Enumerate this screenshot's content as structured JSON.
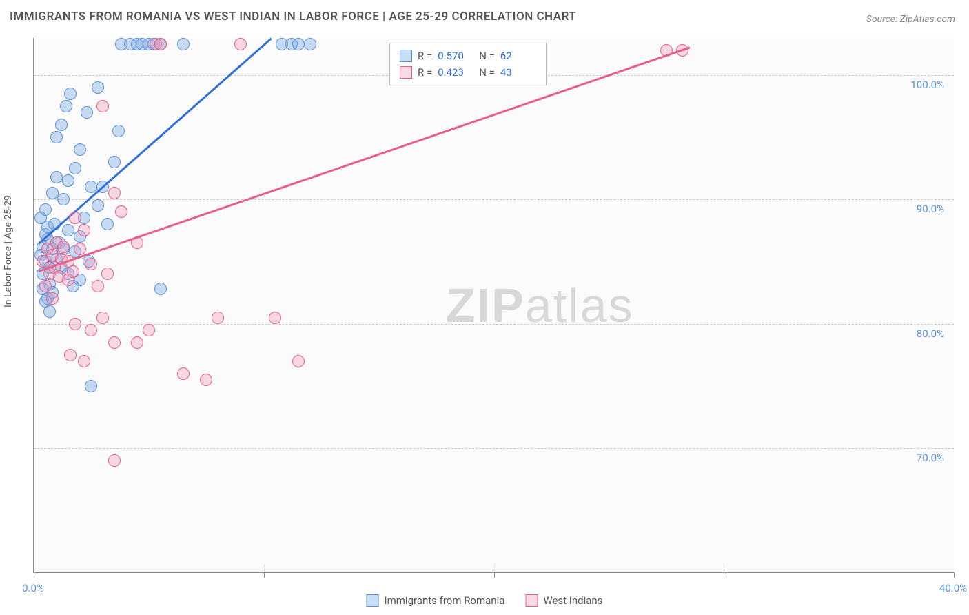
{
  "title": "IMMIGRANTS FROM ROMANIA VS WEST INDIAN IN LABOR FORCE | AGE 25-29 CORRELATION CHART",
  "source": "Source: ZipAtlas.com",
  "ylabel": "In Labor Force | Age 25-29",
  "watermark_prefix": "ZIP",
  "watermark_suffix": "atlas",
  "chart": {
    "type": "scatter",
    "xlim": [
      0,
      40
    ],
    "ylim": [
      60,
      103
    ],
    "xticks": [
      0,
      10,
      20,
      30,
      40
    ],
    "xtick_labels": [
      "0.0%",
      "",
      "",
      "",
      "40.0%"
    ],
    "yticks": [
      70,
      80,
      90,
      100
    ],
    "ytick_labels": [
      "70.0%",
      "80.0%",
      "90.0%",
      "100.0%"
    ],
    "grid_color": "#cccccc",
    "background_color": "#fbfbfb",
    "series": [
      {
        "name": "Immigrants from Romania",
        "color_fill": "rgba(120,170,230,0.4)",
        "color_stroke": "#5b8fd6",
        "R": "0.570",
        "N": "62",
        "trend": {
          "x1": 0.2,
          "y1": 86.5,
          "x2": 10.3,
          "y2": 103
        },
        "points": [
          [
            0.3,
            85.5
          ],
          [
            0.4,
            86.2
          ],
          [
            0.5,
            85.0
          ],
          [
            0.6,
            86.8
          ],
          [
            0.7,
            84.5
          ],
          [
            0.8,
            86.0
          ],
          [
            0.5,
            87.2
          ],
          [
            0.6,
            87.8
          ],
          [
            0.9,
            88.0
          ],
          [
            1.0,
            85.2
          ],
          [
            1.1,
            86.5
          ],
          [
            0.4,
            84.0
          ],
          [
            0.7,
            83.2
          ],
          [
            0.8,
            82.5
          ],
          [
            0.6,
            82.0
          ],
          [
            0.5,
            81.8
          ],
          [
            1.2,
            84.5
          ],
          [
            1.3,
            86.0
          ],
          [
            1.5,
            87.5
          ],
          [
            1.8,
            85.8
          ],
          [
            2.0,
            83.5
          ],
          [
            2.0,
            87.0
          ],
          [
            2.2,
            88.5
          ],
          [
            2.4,
            85.0
          ],
          [
            1.3,
            90.0
          ],
          [
            1.5,
            91.5
          ],
          [
            1.8,
            92.5
          ],
          [
            2.0,
            94.0
          ],
          [
            2.5,
            91.0
          ],
          [
            1.2,
            96.0
          ],
          [
            1.4,
            97.5
          ],
          [
            1.6,
            98.5
          ],
          [
            2.3,
            97.0
          ],
          [
            2.8,
            89.5
          ],
          [
            3.0,
            91.0
          ],
          [
            3.2,
            88.0
          ],
          [
            3.5,
            93.0
          ],
          [
            2.5,
            75.0
          ],
          [
            5.5,
            82.8
          ],
          [
            2.8,
            99.0
          ],
          [
            3.7,
            95.5
          ],
          [
            3.8,
            102.5
          ],
          [
            4.2,
            102.5
          ],
          [
            4.5,
            102.5
          ],
          [
            4.7,
            102.5
          ],
          [
            5.0,
            102.5
          ],
          [
            5.2,
            102.5
          ],
          [
            5.5,
            102.5
          ],
          [
            6.5,
            102.5
          ],
          [
            10.8,
            102.5
          ],
          [
            11.2,
            102.5
          ],
          [
            11.5,
            102.5
          ],
          [
            12.0,
            102.5
          ],
          [
            0.3,
            88.5
          ],
          [
            0.5,
            89.2
          ],
          [
            0.8,
            90.5
          ],
          [
            1.0,
            91.8
          ],
          [
            0.4,
            82.8
          ],
          [
            0.7,
            81.0
          ],
          [
            1.5,
            84.0
          ],
          [
            1.7,
            83.0
          ],
          [
            1.0,
            95.0
          ]
        ]
      },
      {
        "name": "West Indians",
        "color_fill": "rgba(240,150,180,0.35)",
        "color_stroke": "#e85d8c",
        "R": "0.423",
        "N": "43",
        "trend": {
          "x1": 0.2,
          "y1": 84.3,
          "x2": 28.5,
          "y2": 102.3
        },
        "points": [
          [
            0.4,
            85.0
          ],
          [
            0.6,
            86.0
          ],
          [
            0.8,
            85.5
          ],
          [
            1.0,
            86.5
          ],
          [
            1.2,
            85.2
          ],
          [
            0.7,
            84.0
          ],
          [
            0.9,
            84.5
          ],
          [
            1.1,
            83.8
          ],
          [
            1.3,
            86.2
          ],
          [
            1.5,
            85.0
          ],
          [
            1.7,
            84.2
          ],
          [
            0.5,
            83.0
          ],
          [
            0.8,
            82.0
          ],
          [
            1.5,
            83.5
          ],
          [
            2.0,
            86.0
          ],
          [
            2.2,
            87.5
          ],
          [
            1.8,
            80.0
          ],
          [
            2.5,
            79.5
          ],
          [
            3.0,
            80.5
          ],
          [
            2.2,
            77.0
          ],
          [
            3.5,
            78.5
          ],
          [
            1.6,
            77.5
          ],
          [
            4.5,
            78.5
          ],
          [
            5.0,
            79.5
          ],
          [
            3.2,
            84.0
          ],
          [
            3.8,
            89.0
          ],
          [
            6.5,
            76.0
          ],
          [
            7.5,
            75.5
          ],
          [
            8.0,
            80.5
          ],
          [
            10.5,
            80.5
          ],
          [
            11.5,
            77.0
          ],
          [
            3.0,
            97.5
          ],
          [
            5.3,
            102.5
          ],
          [
            5.5,
            102.5
          ],
          [
            9.0,
            102.5
          ],
          [
            3.5,
            69.0
          ],
          [
            27.5,
            102.0
          ],
          [
            28.2,
            102.0
          ],
          [
            2.5,
            84.8
          ],
          [
            1.8,
            88.5
          ],
          [
            3.5,
            90.5
          ],
          [
            4.5,
            86.5
          ],
          [
            2.8,
            83.0
          ]
        ]
      }
    ]
  },
  "legend_top": {
    "rows": [
      {
        "swatch": "a",
        "R_label": "R =",
        "R": "0.570",
        "N_label": "N =",
        "N": "62"
      },
      {
        "swatch": "b",
        "R_label": "R =",
        "R": "0.423",
        "N_label": "N =",
        "N": "43"
      }
    ]
  },
  "legend_bottom": [
    {
      "swatch": "a",
      "label": "Immigrants from Romania"
    },
    {
      "swatch": "b",
      "label": "West Indians"
    }
  ]
}
